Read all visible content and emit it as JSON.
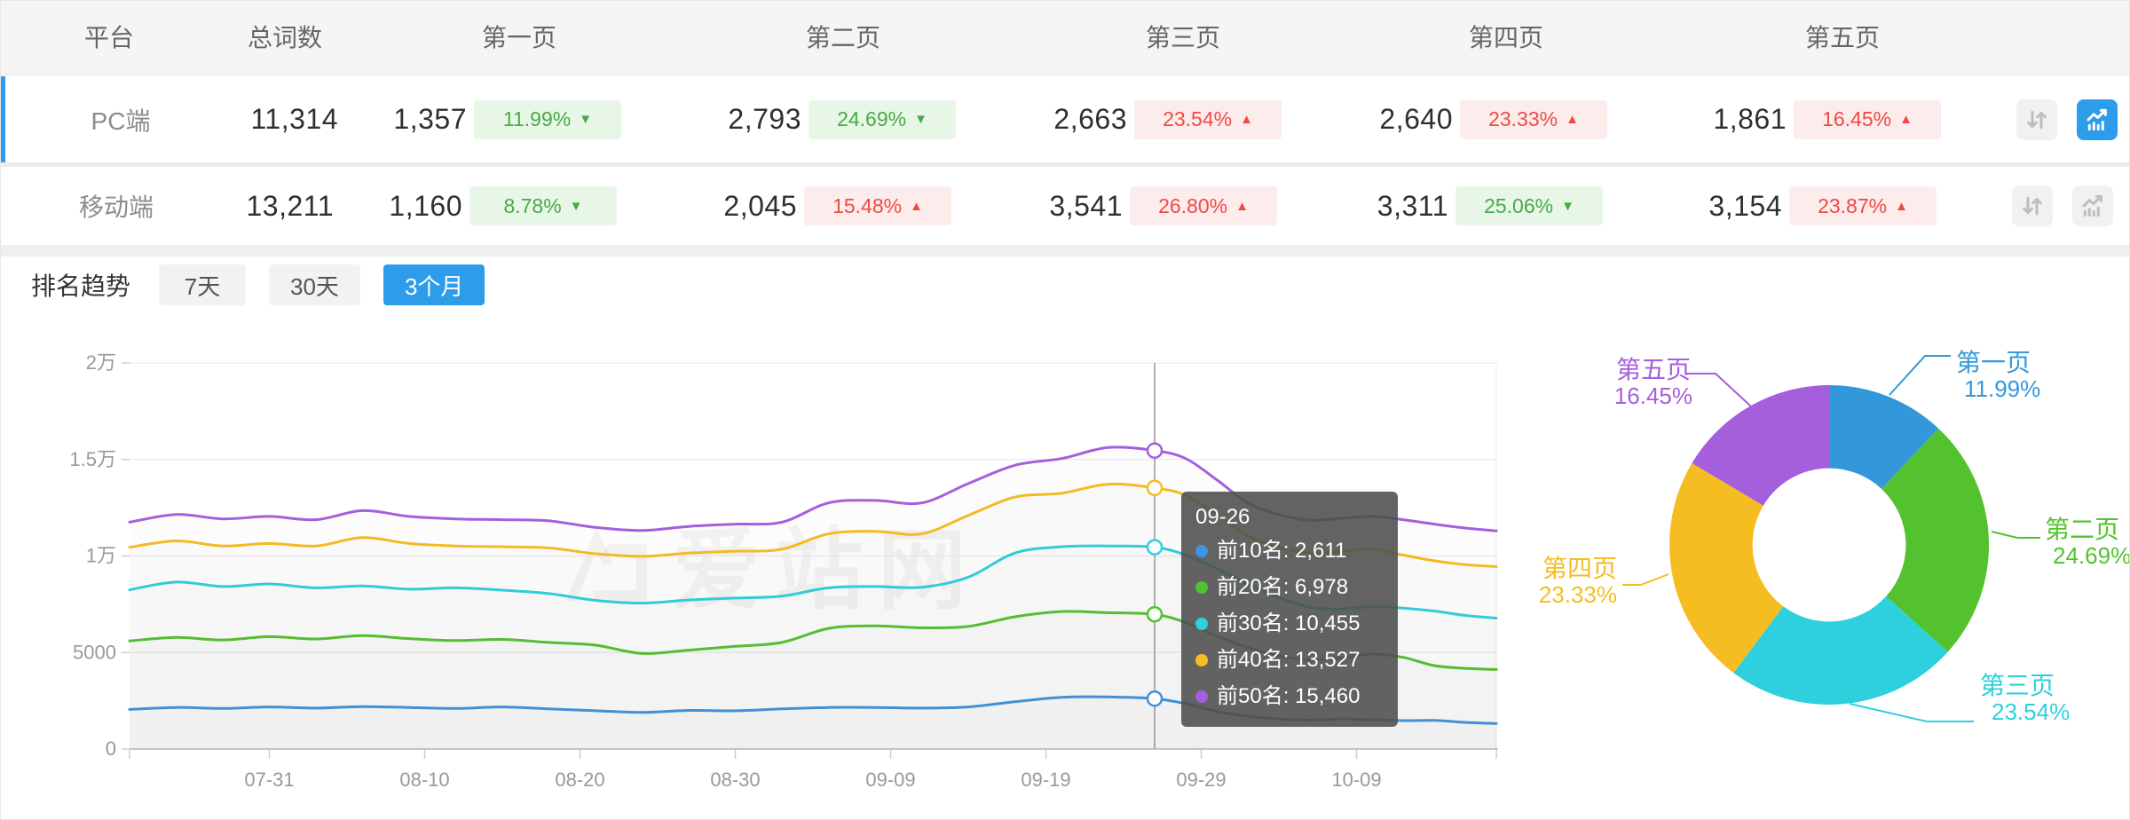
{
  "colors": {
    "accent_blue": "#2d9ceb",
    "badge_green": "#47ab45",
    "badge_green_bg": "#e8f6e8",
    "badge_red": "#ee4b44",
    "badge_red_bg": "#fdecec",
    "axis_label": "#999999",
    "grid_line": "#e8e8e8"
  },
  "table": {
    "headers": [
      "平台",
      "总词数",
      "第一页",
      "第二页",
      "第三页",
      "第四页",
      "第五页"
    ],
    "rows": [
      {
        "platform": "PC端",
        "total": "11,314",
        "active": true,
        "chart_btn_active": true,
        "pages": [
          {
            "count": "1,357",
            "pct": "11.99%",
            "dir": "down"
          },
          {
            "count": "2,793",
            "pct": "24.69%",
            "dir": "down"
          },
          {
            "count": "2,663",
            "pct": "23.54%",
            "dir": "up"
          },
          {
            "count": "2,640",
            "pct": "23.33%",
            "dir": "up"
          },
          {
            "count": "1,861",
            "pct": "16.45%",
            "dir": "up"
          }
        ]
      },
      {
        "platform": "移动端",
        "total": "13,211",
        "active": false,
        "chart_btn_active": false,
        "pages": [
          {
            "count": "1,160",
            "pct": "8.78%",
            "dir": "down"
          },
          {
            "count": "2,045",
            "pct": "15.48%",
            "dir": "up"
          },
          {
            "count": "3,541",
            "pct": "26.80%",
            "dir": "up"
          },
          {
            "count": "3,311",
            "pct": "25.06%",
            "dir": "down"
          },
          {
            "count": "3,154",
            "pct": "23.87%",
            "dir": "up"
          }
        ]
      }
    ]
  },
  "trend": {
    "title": "排名趋势",
    "tabs": [
      "7天",
      "30天",
      "3个月"
    ],
    "active_tab": "3个月"
  },
  "watermark": "爱站网",
  "tooltip": {
    "title": "09-26",
    "items": [
      {
        "text": "前10名: 2,611",
        "color": "#3d94e1"
      },
      {
        "text": "前20名: 6,978",
        "color": "#53c22f"
      },
      {
        "text": "前30名: 10,455",
        "color": "#2ed0de"
      },
      {
        "text": "前40名: 13,527",
        "color": "#f5bd22"
      },
      {
        "text": "前50名: 15,460",
        "color": "#a55fdd"
      }
    ]
  },
  "chart_data": [
    {
      "type": "line",
      "title": "排名趋势 (3个月)",
      "x_tick_labels": [
        "07-31",
        "08-10",
        "08-20",
        "08-30",
        "09-09",
        "09-19",
        "09-29",
        "10-09"
      ],
      "x_tick_days": [
        9,
        19,
        29,
        39,
        49,
        59,
        69,
        79
      ],
      "x_range_days": [
        0,
        88
      ],
      "ylim": [
        0,
        20000
      ],
      "y_ticks": [
        {
          "label": "0",
          "value": 0
        },
        {
          "label": "5000",
          "value": 5000
        },
        {
          "label": "1万",
          "value": 10000
        },
        {
          "label": "1.5万",
          "value": 15000
        },
        {
          "label": "2万",
          "value": 20000
        }
      ],
      "grid": true,
      "crosshair_day": 66,
      "crosshair_date": "09-26",
      "series": [
        {
          "name": "前10名",
          "color": "#3d94e1",
          "marker_value": 2611,
          "points": [
            [
              0,
              2050
            ],
            [
              3,
              2150
            ],
            [
              6,
              2100
            ],
            [
              9,
              2180
            ],
            [
              12,
              2120
            ],
            [
              15,
              2200
            ],
            [
              18,
              2150
            ],
            [
              21,
              2100
            ],
            [
              24,
              2180
            ],
            [
              27,
              2080
            ],
            [
              30,
              1980
            ],
            [
              33,
              1900
            ],
            [
              36,
              2000
            ],
            [
              39,
              1980
            ],
            [
              42,
              2080
            ],
            [
              45,
              2150
            ],
            [
              48,
              2150
            ],
            [
              51,
              2120
            ],
            [
              54,
              2180
            ],
            [
              57,
              2450
            ],
            [
              60,
              2680
            ],
            [
              63,
              2700
            ],
            [
              66,
              2611
            ],
            [
              68,
              2350
            ],
            [
              70,
              1950
            ],
            [
              72,
              1700
            ],
            [
              74,
              1560
            ],
            [
              76,
              1500
            ],
            [
              78,
              1560
            ],
            [
              80,
              1520
            ],
            [
              82,
              1470
            ],
            [
              84,
              1480
            ],
            [
              86,
              1380
            ],
            [
              88,
              1320
            ]
          ]
        },
        {
          "name": "前20名",
          "color": "#53c22f",
          "marker_value": 6978,
          "points": [
            [
              0,
              5600
            ],
            [
              3,
              5780
            ],
            [
              6,
              5650
            ],
            [
              9,
              5820
            ],
            [
              12,
              5700
            ],
            [
              15,
              5870
            ],
            [
              18,
              5720
            ],
            [
              21,
              5620
            ],
            [
              24,
              5680
            ],
            [
              27,
              5520
            ],
            [
              30,
              5380
            ],
            [
              33,
              4950
            ],
            [
              36,
              5120
            ],
            [
              39,
              5320
            ],
            [
              42,
              5520
            ],
            [
              45,
              6250
            ],
            [
              48,
              6380
            ],
            [
              51,
              6280
            ],
            [
              54,
              6350
            ],
            [
              57,
              6850
            ],
            [
              60,
              7120
            ],
            [
              63,
              7060
            ],
            [
              66,
              6978
            ],
            [
              68,
              6550
            ],
            [
              70,
              5850
            ],
            [
              72,
              5250
            ],
            [
              74,
              4820
            ],
            [
              76,
              4620
            ],
            [
              78,
              4720
            ],
            [
              80,
              4920
            ],
            [
              82,
              4750
            ],
            [
              84,
              4320
            ],
            [
              86,
              4180
            ],
            [
              88,
              4120
            ]
          ]
        },
        {
          "name": "前30名",
          "color": "#2ed0de",
          "marker_value": 10455,
          "points": [
            [
              0,
              8250
            ],
            [
              3,
              8650
            ],
            [
              6,
              8420
            ],
            [
              9,
              8550
            ],
            [
              12,
              8350
            ],
            [
              15,
              8450
            ],
            [
              18,
              8280
            ],
            [
              21,
              8350
            ],
            [
              24,
              8230
            ],
            [
              27,
              8050
            ],
            [
              30,
              7700
            ],
            [
              33,
              7560
            ],
            [
              36,
              7720
            ],
            [
              39,
              7820
            ],
            [
              42,
              7920
            ],
            [
              45,
              8350
            ],
            [
              48,
              8420
            ],
            [
              51,
              8380
            ],
            [
              54,
              8900
            ],
            [
              57,
              10150
            ],
            [
              60,
              10480
            ],
            [
              63,
              10520
            ],
            [
              66,
              10455
            ],
            [
              68,
              10050
            ],
            [
              70,
              9350
            ],
            [
              72,
              8550
            ],
            [
              74,
              7850
            ],
            [
              76,
              7350
            ],
            [
              78,
              7250
            ],
            [
              80,
              7380
            ],
            [
              82,
              7300
            ],
            [
              84,
              7150
            ],
            [
              86,
              6920
            ],
            [
              88,
              6780
            ]
          ]
        },
        {
          "name": "前40名",
          "color": "#f5bd22",
          "marker_value": 13527,
          "points": [
            [
              0,
              10450
            ],
            [
              3,
              10780
            ],
            [
              6,
              10520
            ],
            [
              9,
              10650
            ],
            [
              12,
              10520
            ],
            [
              15,
              10950
            ],
            [
              18,
              10650
            ],
            [
              21,
              10520
            ],
            [
              24,
              10480
            ],
            [
              27,
              10420
            ],
            [
              30,
              10120
            ],
            [
              33,
              9980
            ],
            [
              36,
              10150
            ],
            [
              39,
              10250
            ],
            [
              42,
              10350
            ],
            [
              45,
              11150
            ],
            [
              48,
              11280
            ],
            [
              51,
              11150
            ],
            [
              54,
              12100
            ],
            [
              57,
              13050
            ],
            [
              60,
              13250
            ],
            [
              63,
              13720
            ],
            [
              66,
              13527
            ],
            [
              68,
              13150
            ],
            [
              70,
              12150
            ],
            [
              72,
              11050
            ],
            [
              74,
              10450
            ],
            [
              76,
              10150
            ],
            [
              78,
              10250
            ],
            [
              80,
              10350
            ],
            [
              82,
              10050
            ],
            [
              84,
              9750
            ],
            [
              86,
              9550
            ],
            [
              88,
              9450
            ]
          ]
        },
        {
          "name": "前50名",
          "color": "#a55fdd",
          "marker_value": 15460,
          "points": [
            [
              0,
              11750
            ],
            [
              3,
              12150
            ],
            [
              6,
              11920
            ],
            [
              9,
              12050
            ],
            [
              12,
              11880
            ],
            [
              15,
              12350
            ],
            [
              18,
              12050
            ],
            [
              21,
              11920
            ],
            [
              24,
              11880
            ],
            [
              27,
              11820
            ],
            [
              30,
              11480
            ],
            [
              33,
              11320
            ],
            [
              36,
              11530
            ],
            [
              39,
              11650
            ],
            [
              42,
              11750
            ],
            [
              45,
              12750
            ],
            [
              48,
              12880
            ],
            [
              51,
              12750
            ],
            [
              54,
              13750
            ],
            [
              57,
              14700
            ],
            [
              60,
              15050
            ],
            [
              63,
              15620
            ],
            [
              66,
              15460
            ],
            [
              68,
              15050
            ],
            [
              70,
              13950
            ],
            [
              72,
              12750
            ],
            [
              74,
              12150
            ],
            [
              76,
              11850
            ],
            [
              78,
              11950
            ],
            [
              80,
              12050
            ],
            [
              82,
              11880
            ],
            [
              84,
              11650
            ],
            [
              86,
              11450
            ],
            [
              88,
              11300
            ]
          ]
        }
      ]
    },
    {
      "type": "pie",
      "donut": true,
      "inner_radius_ratio": 0.48,
      "legend_position": "outside-labels",
      "slices": [
        {
          "label": "第一页",
          "value": 11.99,
          "pct": "11.99%",
          "color": "#3398db"
        },
        {
          "label": "第二页",
          "value": 24.69,
          "pct": "24.69%",
          "color": "#54c22e"
        },
        {
          "label": "第三页",
          "value": 23.54,
          "pct": "23.54%",
          "color": "#2ed0de"
        },
        {
          "label": "第四页",
          "value": 23.33,
          "pct": "23.33%",
          "color": "#f5bd22"
        },
        {
          "label": "第五页",
          "value": 16.45,
          "pct": "16.45%",
          "color": "#a55fdd"
        }
      ]
    }
  ]
}
